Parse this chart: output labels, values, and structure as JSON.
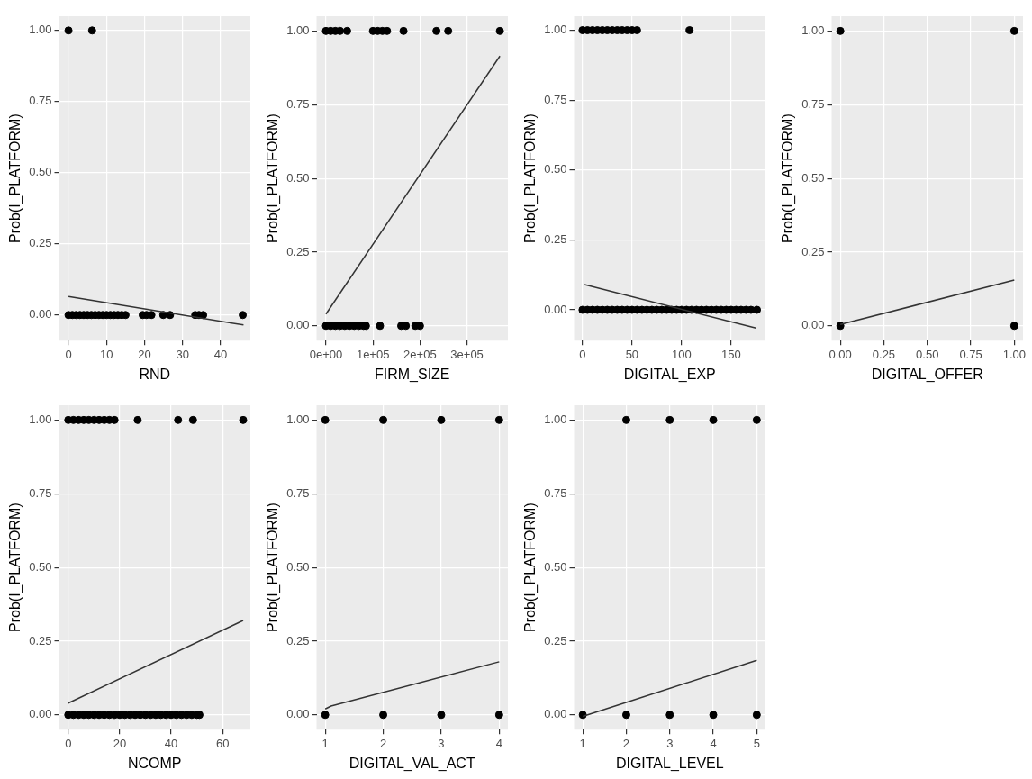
{
  "chart_data": [
    {
      "type": "scatter",
      "xlabel": "RND",
      "ylabel": "Prob(I_PLATFORM)",
      "xlim": [
        -2.5,
        47.8
      ],
      "ylim": [
        -0.09,
        1.05
      ],
      "xticks": [
        0,
        10,
        20,
        30,
        40
      ],
      "yticks": [
        {
          "value": 0,
          "label": "0.00"
        },
        {
          "value": 0.25,
          "label": "0.25"
        },
        {
          "value": 0.5,
          "label": "0.50"
        },
        {
          "value": 0.75,
          "label": "0.75"
        },
        {
          "value": 1,
          "label": "1.00"
        }
      ],
      "grid": true,
      "series": [
        {
          "type": "scatter",
          "marker": "circle",
          "color": "#000000",
          "x": [
            0,
            6.2,
            0,
            1,
            2,
            3,
            4,
            5,
            6,
            7,
            8,
            9,
            10,
            11,
            12,
            13,
            14,
            15,
            19.5,
            20.5,
            21.8,
            24.9,
            26.7,
            33.3,
            34.3,
            35.4,
            45.8
          ],
          "values": [
            1,
            1,
            0,
            0,
            0,
            0,
            0,
            0,
            0,
            0,
            0,
            0,
            0,
            0,
            0,
            0,
            0,
            0,
            0,
            0,
            0,
            0,
            0,
            0,
            0,
            0,
            0
          ]
        },
        {
          "type": "line",
          "marker": "none",
          "color": "#333333",
          "x": [
            0,
            46
          ],
          "values": [
            0.065,
            -0.035
          ]
        }
      ]
    },
    {
      "type": "scatter",
      "xlabel": "FIRM_SIZE",
      "ylabel": "Prob(I_PLATFORM)",
      "xlim": [
        -20000,
        387000
      ],
      "ylim": [
        -0.05,
        1.05
      ],
      "xticks": [
        {
          "value": 0,
          "label": "0e+00"
        },
        {
          "value": 100000,
          "label": "1e+05"
        },
        {
          "value": 200000,
          "label": "2e+05"
        },
        {
          "value": 300000,
          "label": "3e+05"
        }
      ],
      "yticks": [
        {
          "value": 0,
          "label": "0.00"
        },
        {
          "value": 0.25,
          "label": "0.25"
        },
        {
          "value": 0.5,
          "label": "0.50"
        },
        {
          "value": 0.75,
          "label": "0.75"
        },
        {
          "value": 1,
          "label": "1.00"
        }
      ],
      "grid": true,
      "series": [
        {
          "type": "scatter",
          "marker": "circle",
          "color": "#000000",
          "x": [
            0,
            10000,
            20000,
            30000,
            45000,
            100000,
            110000,
            120000,
            130000,
            165000,
            235000,
            260000,
            370000,
            0,
            10000,
            20000,
            30000,
            40000,
            50000,
            60000,
            70000,
            80000,
            85000,
            115000,
            160000,
            170000,
            190000,
            200000
          ],
          "values": [
            1,
            1,
            1,
            1,
            1,
            1,
            1,
            1,
            1,
            1,
            1,
            1,
            1,
            0,
            0,
            0,
            0,
            0,
            0,
            0,
            0,
            0,
            0,
            0,
            0,
            0,
            0,
            0
          ]
        },
        {
          "type": "line",
          "marker": "none",
          "color": "#333333",
          "x": [
            0,
            370000
          ],
          "values": [
            0.04,
            0.915
          ]
        }
      ]
    },
    {
      "type": "scatter",
      "xlabel": "DIGITAL_EXP",
      "ylabel": "Prob(I_PLATFORM)",
      "xlim": [
        -8.5,
        184.6
      ],
      "ylim": [
        -0.11,
        1.05
      ],
      "xticks": [
        0,
        50,
        100,
        150
      ],
      "yticks": [
        {
          "value": 0,
          "label": "0.00"
        },
        {
          "value": 0.25,
          "label": "0.25"
        },
        {
          "value": 0.5,
          "label": "0.50"
        },
        {
          "value": 0.75,
          "label": "0.75"
        },
        {
          "value": 1,
          "label": "1.00"
        }
      ],
      "grid": true,
      "series": [
        {
          "type": "scatter",
          "marker": "circle",
          "color": "#000000",
          "x": [
            0,
            5,
            10,
            15,
            20,
            25,
            30,
            35,
            40,
            45,
            50,
            55,
            108,
            0,
            5,
            10,
            15,
            20,
            25,
            30,
            35,
            40,
            45,
            50,
            55,
            60,
            65,
            70,
            75,
            80,
            85,
            90,
            95,
            100,
            105,
            110,
            115,
            120,
            125,
            130,
            135,
            140,
            145,
            150,
            155,
            160,
            165,
            170,
            176
          ],
          "values": [
            1,
            1,
            1,
            1,
            1,
            1,
            1,
            1,
            1,
            1,
            1,
            1,
            1,
            0,
            0,
            0,
            0,
            0,
            0,
            0,
            0,
            0,
            0,
            0,
            0,
            0,
            0,
            0,
            0,
            0,
            0,
            0,
            0,
            0,
            0,
            0,
            0,
            0,
            0,
            0,
            0,
            0,
            0,
            0,
            0,
            0,
            0,
            0,
            0
          ]
        },
        {
          "type": "line",
          "marker": "none",
          "color": "#333333",
          "x": [
            2,
            175
          ],
          "values": [
            0.09,
            -0.065
          ]
        }
      ]
    },
    {
      "type": "scatter",
      "xlabel": "DIGITAL_OFFER",
      "ylabel": "Prob(I_PLATFORM)",
      "xlim": [
        -0.05,
        1.05
      ],
      "ylim": [
        -0.05,
        1.05
      ],
      "xticks": [
        {
          "value": 0,
          "label": "0.00"
        },
        {
          "value": 0.25,
          "label": "0.25"
        },
        {
          "value": 0.5,
          "label": "0.50"
        },
        {
          "value": 0.75,
          "label": "0.75"
        },
        {
          "value": 1,
          "label": "1.00"
        }
      ],
      "yticks": [
        {
          "value": 0,
          "label": "0.00"
        },
        {
          "value": 0.25,
          "label": "0.25"
        },
        {
          "value": 0.5,
          "label": "0.50"
        },
        {
          "value": 0.75,
          "label": "0.75"
        },
        {
          "value": 1,
          "label": "1.00"
        }
      ],
      "grid": true,
      "series": [
        {
          "type": "scatter",
          "marker": "circle",
          "color": "#000000",
          "x": [
            0,
            1,
            0,
            1
          ],
          "values": [
            1,
            1,
            0,
            0
          ]
        },
        {
          "type": "line",
          "marker": "none",
          "color": "#333333",
          "x": [
            0,
            1
          ],
          "values": [
            0.005,
            0.155
          ]
        }
      ]
    },
    {
      "type": "scatter",
      "xlabel": "NCOMP",
      "ylabel": "Prob(I_PLATFORM)",
      "xlim": [
        -3.6,
        70.8
      ],
      "ylim": [
        -0.05,
        1.05
      ],
      "xticks": [
        0,
        20,
        40,
        60
      ],
      "yticks": [
        {
          "value": 0,
          "label": "0.00"
        },
        {
          "value": 0.25,
          "label": "0.25"
        },
        {
          "value": 0.5,
          "label": "0.50"
        },
        {
          "value": 0.75,
          "label": "0.75"
        },
        {
          "value": 1,
          "label": "1.00"
        }
      ],
      "grid": true,
      "series": [
        {
          "type": "scatter",
          "marker": "circle",
          "color": "#000000",
          "x": [
            0,
            2,
            4,
            6,
            8,
            10,
            12,
            14,
            16,
            18,
            27,
            42.7,
            48.5,
            68,
            0,
            2,
            4,
            6,
            8,
            10,
            12,
            14,
            16,
            18,
            20,
            22,
            24,
            26,
            28,
            30,
            32,
            34,
            36,
            38,
            40,
            42,
            44,
            46,
            48,
            50,
            51
          ],
          "values": [
            1,
            1,
            1,
            1,
            1,
            1,
            1,
            1,
            1,
            1,
            1,
            1,
            1,
            1,
            0,
            0,
            0,
            0,
            0,
            0,
            0,
            0,
            0,
            0,
            0,
            0,
            0,
            0,
            0,
            0,
            0,
            0,
            0,
            0,
            0,
            0,
            0,
            0,
            0,
            0,
            0
          ]
        },
        {
          "type": "line",
          "marker": "none",
          "color": "#333333",
          "x": [
            0,
            68
          ],
          "values": [
            0.04,
            0.32
          ]
        }
      ]
    },
    {
      "type": "scatter",
      "xlabel": "DIGITAL_VAL_ACT",
      "ylabel": "Prob(I_PLATFORM)",
      "xlim": [
        0.85,
        4.15
      ],
      "ylim": [
        -0.05,
        1.05
      ],
      "xticks": [
        1,
        2,
        3,
        4
      ],
      "yticks": [
        {
          "value": 0,
          "label": "0.00"
        },
        {
          "value": 0.25,
          "label": "0.25"
        },
        {
          "value": 0.5,
          "label": "0.50"
        },
        {
          "value": 0.75,
          "label": "0.75"
        },
        {
          "value": 1,
          "label": "1.00"
        }
      ],
      "grid": true,
      "series": [
        {
          "type": "scatter",
          "marker": "circle",
          "color": "#000000",
          "x": [
            1,
            2,
            3,
            4,
            1,
            2,
            3,
            4
          ],
          "values": [
            1,
            1,
            1,
            1,
            0,
            0,
            0,
            0
          ]
        },
        {
          "type": "line",
          "marker": "none",
          "color": "#333333",
          "x": [
            1,
            1.1,
            4
          ],
          "values": [
            0.02,
            0.03,
            0.18
          ]
        }
      ]
    },
    {
      "type": "scatter",
      "xlabel": "DIGITAL_LEVEL",
      "ylabel": "Prob(I_PLATFORM)",
      "xlim": [
        0.8,
        5.2
      ],
      "ylim": [
        -0.05,
        1.05
      ],
      "xticks": [
        1,
        2,
        3,
        4,
        5
      ],
      "yticks": [
        {
          "value": 0,
          "label": "0.00"
        },
        {
          "value": 0.25,
          "label": "0.25"
        },
        {
          "value": 0.5,
          "label": "0.50"
        },
        {
          "value": 0.75,
          "label": "0.75"
        },
        {
          "value": 1,
          "label": "1.00"
        }
      ],
      "grid": true,
      "series": [
        {
          "type": "scatter",
          "marker": "circle",
          "color": "#000000",
          "x": [
            2,
            3,
            4,
            5,
            1,
            2,
            3,
            4,
            5
          ],
          "values": [
            1,
            1,
            1,
            1,
            0,
            0,
            0,
            0,
            0
          ]
        },
        {
          "type": "line",
          "marker": "none",
          "color": "#333333",
          "x": [
            1,
            5
          ],
          "values": [
            -0.005,
            0.185
          ]
        }
      ]
    }
  ]
}
